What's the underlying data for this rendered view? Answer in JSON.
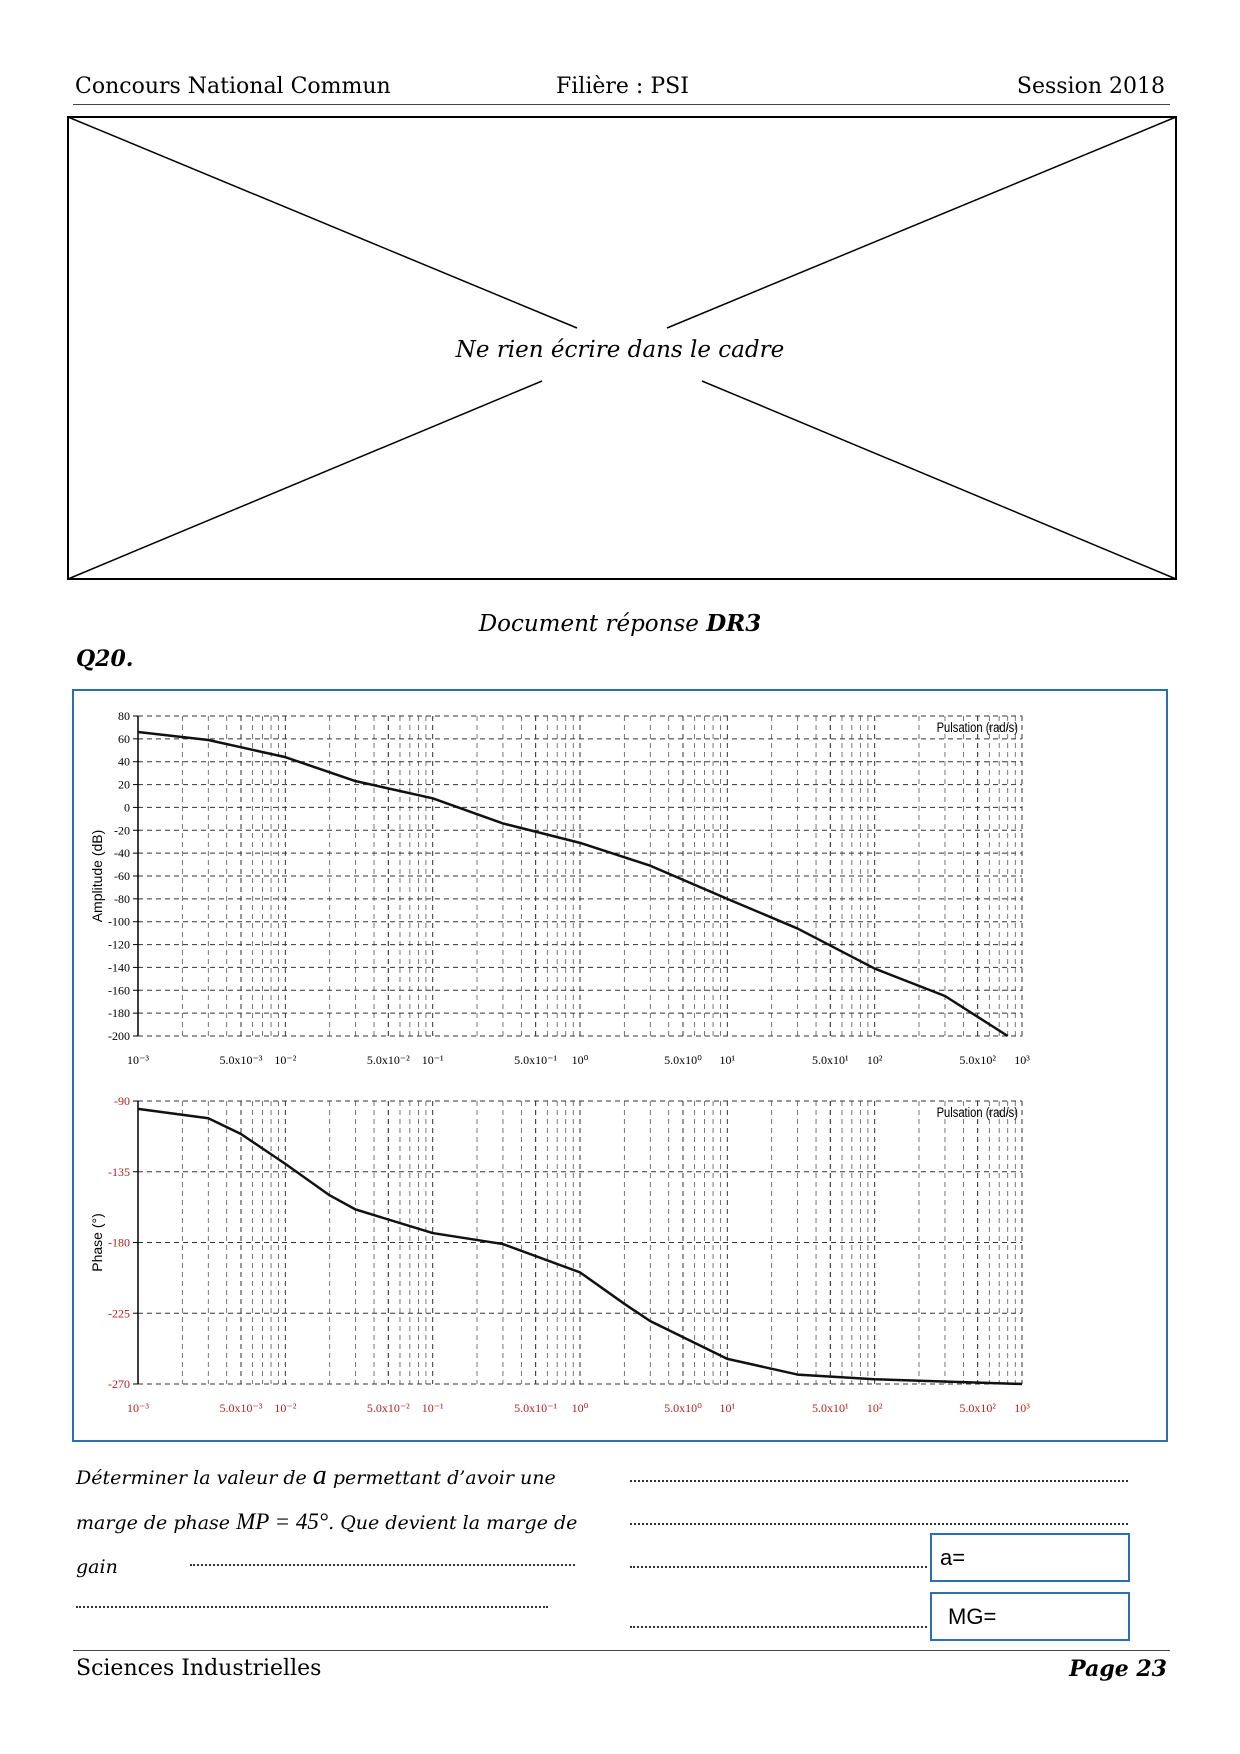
{
  "header": {
    "left": "Concours National Commun",
    "center": "Filière : PSI",
    "right": "Session 2018"
  },
  "frame_note": "Ne rien écrire dans le cadre",
  "document_title": {
    "prefix": "Document réponse",
    "code": "DR3"
  },
  "question": {
    "number": "Q20.",
    "text_1": "Déterminer la valeur de",
    "variable": "a",
    "text_2": "permettant d’avoir une marge de phase",
    "formula": "MP = 45°",
    "text_3": ". Que devient la marge de gain"
  },
  "answers": {
    "a_label": "a=",
    "mg_label": "MG="
  },
  "footer": {
    "left": "Sciences Industrielles",
    "right": "Page 23"
  },
  "chart_data": [
    {
      "type": "line",
      "ylabel": "Amplitude (dB)",
      "annotation": "Pulsation (rad/s)",
      "xscale": "log",
      "grid": true,
      "color": "#111111",
      "tick_color": "#000000",
      "x": [
        0.001,
        0.003,
        0.01,
        0.03,
        0.1,
        0.3,
        1,
        3,
        10,
        30,
        100,
        300,
        800
      ],
      "values": [
        66,
        59,
        44,
        23,
        8,
        -14,
        -31,
        -51,
        -80,
        -106,
        -141,
        -165,
        -200
      ],
      "xlim": [
        0.001,
        1000
      ],
      "xticks": [
        {
          "value": 0.001,
          "label": "10⁻³"
        },
        {
          "value": 0.005,
          "label": "5.0x10⁻³"
        },
        {
          "value": 0.01,
          "label": "10⁻²"
        },
        {
          "value": 0.05,
          "label": "5.0x10⁻²"
        },
        {
          "value": 0.1,
          "label": "10⁻¹"
        },
        {
          "value": 0.5,
          "label": "5.0x10⁻¹"
        },
        {
          "value": 1,
          "label": "10⁰"
        },
        {
          "value": 5,
          "label": "5.0x10⁰"
        },
        {
          "value": 10,
          "label": "10¹"
        },
        {
          "value": 50,
          "label": "5.0x10¹"
        },
        {
          "value": 100,
          "label": "10²"
        },
        {
          "value": 500,
          "label": "5.0x10²"
        },
        {
          "value": 1000,
          "label": "10³"
        }
      ],
      "ylim": [
        -200,
        80
      ],
      "yticks": [
        -200,
        -180,
        -160,
        -140,
        -120,
        -100,
        -80,
        -60,
        -40,
        -20,
        0,
        20,
        40,
        60,
        80
      ]
    },
    {
      "type": "line",
      "ylabel": "Phase (°)",
      "annotation": "Pulsation (rad/s)",
      "xscale": "log",
      "grid": true,
      "color": "#111111",
      "tick_color": "#b22222",
      "x": [
        0.001,
        0.003,
        0.005,
        0.01,
        0.02,
        0.03,
        0.1,
        0.3,
        1,
        2,
        3,
        10,
        30,
        100,
        1000
      ],
      "values": [
        -95,
        -101,
        -111,
        -130,
        -150,
        -159,
        -174,
        -181,
        -199,
        -219,
        -230,
        -254,
        -264,
        -267,
        -270
      ],
      "xlim": [
        0.001,
        1000
      ],
      "xticks": [
        {
          "value": 0.001,
          "label": "10⁻³"
        },
        {
          "value": 0.005,
          "label": "5.0x10⁻³"
        },
        {
          "value": 0.01,
          "label": "10⁻²"
        },
        {
          "value": 0.05,
          "label": "5.0x10⁻²"
        },
        {
          "value": 0.1,
          "label": "10⁻¹"
        },
        {
          "value": 0.5,
          "label": "5.0x10⁻¹"
        },
        {
          "value": 1,
          "label": "10⁰"
        },
        {
          "value": 5,
          "label": "5.0x10⁰"
        },
        {
          "value": 10,
          "label": "10¹"
        },
        {
          "value": 50,
          "label": "5.0x10¹"
        },
        {
          "value": 100,
          "label": "10²"
        },
        {
          "value": 500,
          "label": "5.0x10²"
        },
        {
          "value": 1000,
          "label": "10³"
        }
      ],
      "ylim": [
        -270,
        -90
      ],
      "yticks": [
        -270,
        -225,
        -180,
        -135,
        -90
      ]
    }
  ]
}
